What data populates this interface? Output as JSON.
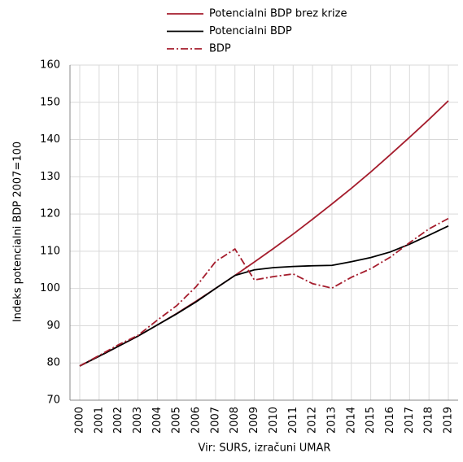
{
  "chart_data": {
    "type": "line",
    "y_label": "Indeks potencialni BDP 2007=100",
    "source": "Vir: SURS, izračuni UMAR",
    "categories": [
      "2000",
      "2001",
      "2002",
      "2003",
      "2004",
      "2005",
      "2006",
      "2007",
      "2008",
      "2009",
      "2010",
      "2011",
      "2012",
      "2013",
      "2014",
      "2015",
      "2016",
      "2017",
      "2018",
      "2019"
    ],
    "series": [
      {
        "name": "Potencialni BDP brez krize",
        "color": "#a51d2d",
        "dash": "solid",
        "values": [
          79.2,
          81.8,
          84.5,
          87.2,
          90.2,
          93.3,
          96.6,
          100,
          103.5,
          107.1,
          110.8,
          114.6,
          118.6,
          122.7,
          126.9,
          131.3,
          135.9,
          140.6,
          145.4,
          150.4
        ]
      },
      {
        "name": "Potencialni BDP",
        "color": "#000000",
        "dash": "solid",
        "values": [
          79.2,
          81.8,
          84.5,
          87.2,
          90.2,
          93.2,
          96.4,
          100,
          103.5,
          105,
          105.6,
          105.9,
          106.1,
          106.2,
          107.2,
          108.3,
          109.8,
          111.9,
          114.3,
          116.8
        ]
      },
      {
        "name": "BDP",
        "color": "#a51d2d",
        "dash": "dashdot",
        "values": [
          79.2,
          82,
          84.9,
          87.4,
          91.5,
          95.4,
          100.5,
          107.2,
          110.6,
          102.3,
          103.2,
          103.9,
          101.3,
          100.1,
          103,
          105.3,
          108.4,
          112.3,
          116,
          118.8
        ]
      }
    ],
    "ylim": [
      70,
      160
    ],
    "yticks": [
      70,
      80,
      90,
      100,
      110,
      120,
      130,
      140,
      150,
      160
    ],
    "grid": true
  }
}
